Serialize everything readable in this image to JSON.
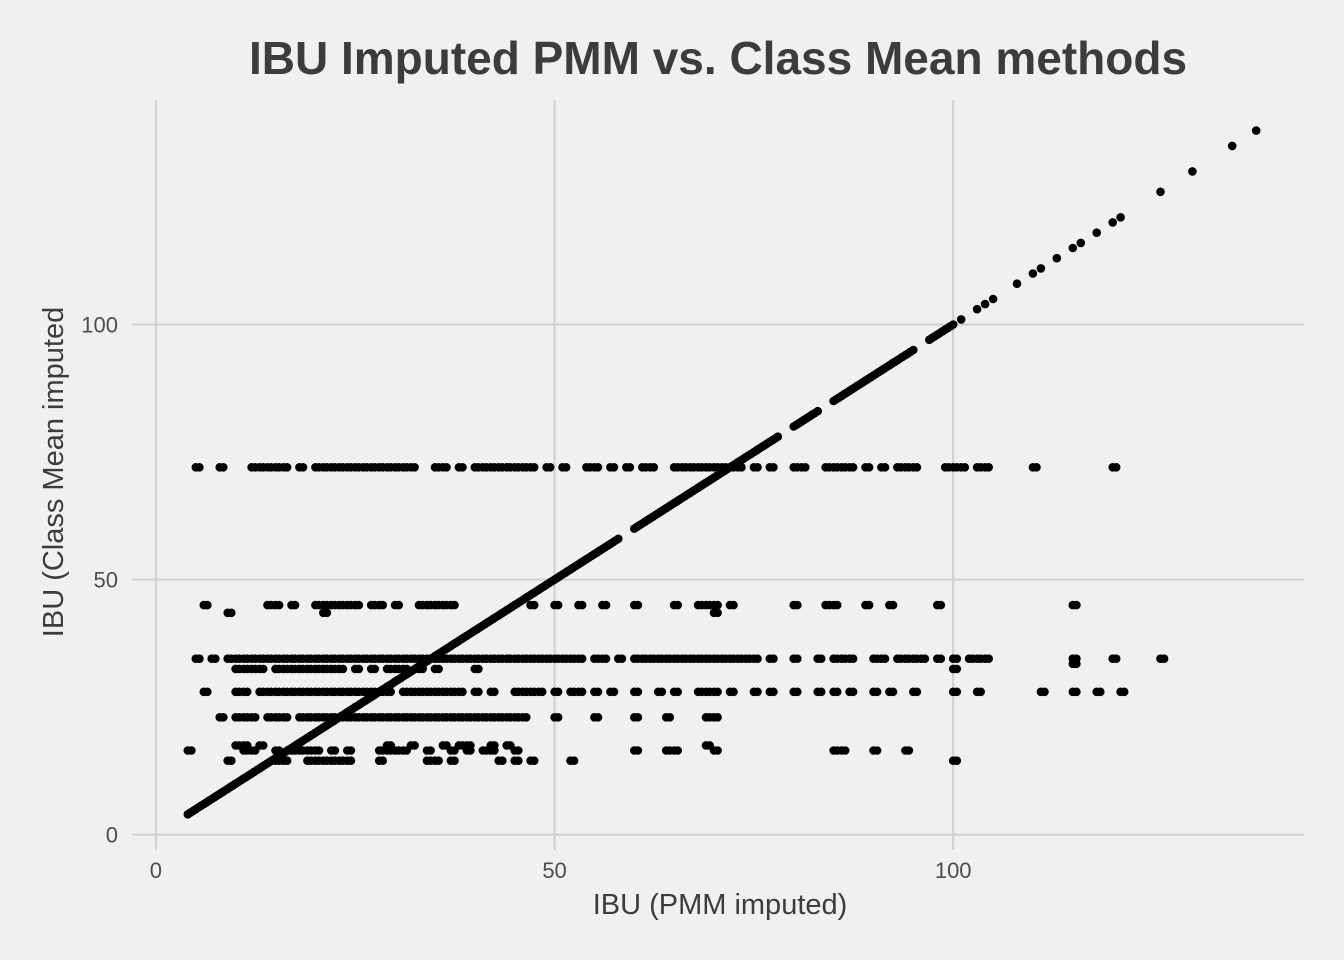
{
  "chart_data": {
    "type": "scatter",
    "title": "IBU Imputed PMM vs. Class Mean methods",
    "xlabel": "IBU (PMM imputed)",
    "ylabel": "IBU (Class Mean imputed",
    "xlim": [
      -3,
      144
    ],
    "ylim": [
      -3,
      144
    ],
    "x_ticks": [
      0,
      50,
      100
    ],
    "y_ticks": [
      0,
      50,
      100
    ],
    "grid": true,
    "legend": "none",
    "colors": {
      "background": "#f0f0f0",
      "grid": "#d2d2d2",
      "points": "#000000"
    },
    "diagonal": [
      4,
      5,
      6,
      7,
      8,
      9,
      10,
      11,
      12,
      13,
      14,
      15,
      16,
      17,
      18,
      19,
      20,
      21,
      22,
      23,
      24,
      25,
      26,
      27,
      28,
      29,
      30,
      31,
      32,
      33,
      34,
      35,
      36,
      37,
      38,
      39,
      40,
      41,
      42,
      43,
      44,
      45,
      46,
      47,
      48,
      49,
      50,
      51,
      52,
      53,
      54,
      55,
      56,
      57,
      58,
      60,
      61,
      62,
      63,
      64,
      65,
      66,
      67,
      68,
      69,
      70,
      71,
      72,
      73,
      74,
      75,
      76,
      77,
      78,
      80,
      81,
      82,
      83,
      85,
      86,
      87,
      88,
      89,
      90,
      91,
      92,
      93,
      94,
      95,
      97,
      98,
      99,
      100,
      101,
      103,
      104,
      105,
      108,
      110,
      111,
      113,
      115,
      116,
      118,
      120,
      121,
      126,
      130,
      135,
      138
    ],
    "bands": [
      {
        "y": 72,
        "x": [
          5,
          8,
          12,
          13,
          14,
          15,
          16,
          18,
          20,
          21,
          22,
          23,
          24,
          25,
          26,
          27,
          28,
          29,
          30,
          31,
          32,
          35,
          36,
          38,
          40,
          41,
          42,
          43,
          44,
          45,
          46,
          47,
          49,
          51,
          54,
          55,
          57,
          59,
          61,
          62,
          65,
          66,
          67,
          68,
          69,
          70,
          71,
          72,
          73,
          75,
          77,
          80,
          81,
          84,
          85,
          86,
          87,
          89,
          91,
          93,
          94,
          95,
          99,
          100,
          101,
          103,
          104,
          110,
          120
        ]
      },
      {
        "y": 45,
        "x": [
          6,
          14,
          15,
          17,
          20,
          21,
          22,
          23,
          24,
          25,
          27,
          28,
          30,
          33,
          34,
          35,
          36,
          37,
          47,
          50,
          53,
          56,
          60,
          65,
          68,
          69,
          70,
          72,
          80,
          84,
          85,
          89,
          92,
          98,
          115
        ]
      },
      {
        "y": 43.5,
        "x": [
          9,
          21,
          70
        ]
      },
      {
        "y": 34.5,
        "x": [
          5,
          7,
          9,
          10,
          11,
          12,
          13,
          14,
          15,
          16,
          17,
          18,
          19,
          20,
          21,
          22,
          23,
          24,
          25,
          26,
          27,
          28,
          29,
          30,
          31,
          32,
          33,
          34,
          35,
          36,
          37,
          38,
          39,
          40,
          41,
          42,
          43,
          44,
          45,
          46,
          47,
          48,
          49,
          50,
          51,
          52,
          53,
          55,
          56,
          58,
          60,
          61,
          62,
          63,
          64,
          65,
          66,
          67,
          68,
          69,
          70,
          71,
          72,
          73,
          74,
          75,
          77,
          80,
          83,
          85,
          86,
          87,
          90,
          91,
          93,
          94,
          95,
          96,
          98,
          100,
          102,
          103,
          104,
          115,
          120,
          126
        ]
      },
      {
        "y": 33.5,
        "x": [
          115
        ]
      },
      {
        "y": 32.5,
        "x": [
          10,
          11,
          12,
          13,
          15,
          16,
          17,
          18,
          19,
          20,
          21,
          22,
          23,
          25,
          27,
          29,
          30,
          31,
          33,
          35,
          40,
          100
        ]
      },
      {
        "y": 28,
        "x": [
          6,
          10,
          11,
          13,
          14,
          15,
          16,
          17,
          18,
          19,
          20,
          21,
          22,
          23,
          24,
          25,
          26,
          27,
          28,
          29,
          31,
          32,
          33,
          34,
          35,
          36,
          37,
          38,
          40,
          42,
          45,
          46,
          47,
          48,
          50,
          52,
          53,
          55,
          57,
          60,
          63,
          65,
          68,
          69,
          70,
          72,
          75,
          77,
          80,
          83,
          85,
          87,
          90,
          92,
          95,
          100,
          103,
          111,
          115,
          118,
          121
        ]
      },
      {
        "y": 23,
        "x": [
          8,
          10,
          11,
          12,
          14,
          15,
          16,
          18,
          19,
          20,
          21,
          22,
          23,
          24,
          25,
          26,
          27,
          28,
          29,
          30,
          31,
          32,
          33,
          34,
          35,
          36,
          37,
          38,
          39,
          40,
          41,
          42,
          43,
          44,
          45,
          46,
          50,
          55,
          60,
          64,
          69,
          70
        ]
      },
      {
        "y": 17.5,
        "x": [
          10,
          11,
          13,
          29,
          32,
          36,
          38,
          39,
          42,
          44,
          69
        ]
      },
      {
        "y": 16.5,
        "x": [
          4,
          11,
          12,
          15,
          17,
          18,
          19,
          20,
          22,
          24,
          28,
          29,
          30,
          31,
          34,
          37,
          39,
          41,
          42,
          45,
          60,
          64,
          65,
          70,
          85,
          86,
          90,
          94
        ]
      },
      {
        "y": 14.5,
        "x": [
          9,
          15,
          16,
          19,
          20,
          21,
          22,
          23,
          24,
          28,
          34,
          35,
          37,
          43,
          45,
          47,
          52,
          100
        ]
      }
    ]
  }
}
